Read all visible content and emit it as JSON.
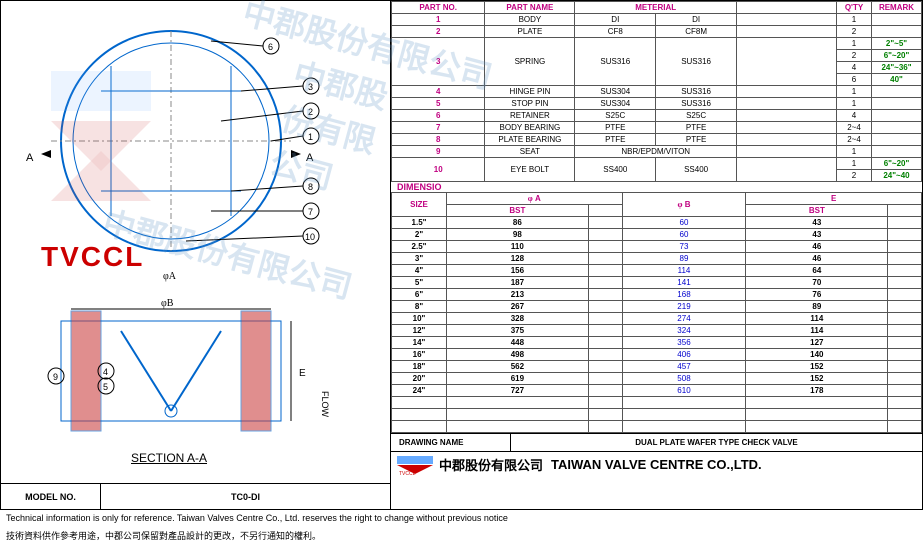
{
  "model": {
    "label": "MODEL NO.",
    "value": "TC0-DI"
  },
  "parts_header": {
    "no": "PART NO.",
    "name": "PART NAME",
    "mat": "METERIAL",
    "qty": "Q'TY",
    "remark": "REMARK"
  },
  "parts": [
    {
      "no": "1",
      "name": "BODY",
      "m1": "DI",
      "m2": "DI",
      "qtys": [
        {
          "q": "1",
          "r": ""
        }
      ]
    },
    {
      "no": "2",
      "name": "PLATE",
      "m1": "CF8",
      "m2": "CF8M",
      "qtys": [
        {
          "q": "2",
          "r": ""
        }
      ]
    },
    {
      "no": "3",
      "name": "SPRING",
      "m1": "SUS316",
      "m2": "SUS316",
      "qtys": [
        {
          "q": "1",
          "r": "2\"~5\""
        },
        {
          "q": "2",
          "r": "6\"~20\""
        },
        {
          "q": "4",
          "r": "24\"~36\""
        },
        {
          "q": "6",
          "r": "40\""
        }
      ]
    },
    {
      "no": "4",
      "name": "HINGE PIN",
      "m1": "SUS304",
      "m2": "SUS316",
      "qtys": [
        {
          "q": "1",
          "r": ""
        }
      ]
    },
    {
      "no": "5",
      "name": "STOP PIN",
      "m1": "SUS304",
      "m2": "SUS316",
      "qtys": [
        {
          "q": "1",
          "r": ""
        }
      ]
    },
    {
      "no": "6",
      "name": "RETAINER",
      "m1": "S25C",
      "m2": "S25C",
      "qtys": [
        {
          "q": "4",
          "r": ""
        }
      ]
    },
    {
      "no": "7",
      "name": "BODY BEARING",
      "m1": "PTFE",
      "m2": "PTFE",
      "qtys": [
        {
          "q": "2~4",
          "r": ""
        }
      ]
    },
    {
      "no": "8",
      "name": "PLATE BEARING",
      "m1": "PTFE",
      "m2": "PTFE",
      "qtys": [
        {
          "q": "2~4",
          "r": ""
        }
      ]
    },
    {
      "no": "9",
      "name": "SEAT",
      "m1": "NBR/EPDM/VITON",
      "m2": "",
      "span": true,
      "qtys": [
        {
          "q": "1",
          "r": ""
        }
      ]
    },
    {
      "no": "10",
      "name": "EYE BOLT",
      "m1": "SS400",
      "m2": "SS400",
      "qtys": [
        {
          "q": "1",
          "r": "6\"~20\""
        },
        {
          "q": "2",
          "r": "24\"~40"
        }
      ]
    }
  ],
  "dim_label": "DIMENSIO",
  "dim_header": {
    "size": "SIZE",
    "a": "A",
    "b": "B",
    "e": "E",
    "bst": "BST"
  },
  "dims": [
    {
      "s": "1.5\"",
      "a": "86",
      "b": "60",
      "e": "43"
    },
    {
      "s": "2\"",
      "a": "98",
      "b": "60",
      "e": "43"
    },
    {
      "s": "2.5\"",
      "a": "110",
      "b": "73",
      "e": "46"
    },
    {
      "s": "3\"",
      "a": "128",
      "b": "89",
      "e": "46"
    },
    {
      "s": "4\"",
      "a": "156",
      "b": "114",
      "e": "64"
    },
    {
      "s": "5\"",
      "a": "187",
      "b": "141",
      "e": "70"
    },
    {
      "s": "6\"",
      "a": "213",
      "b": "168",
      "e": "76"
    },
    {
      "s": "8\"",
      "a": "267",
      "b": "219",
      "e": "89"
    },
    {
      "s": "10\"",
      "a": "328",
      "b": "274",
      "e": "114"
    },
    {
      "s": "12\"",
      "a": "375",
      "b": "324",
      "e": "114"
    },
    {
      "s": "14\"",
      "a": "448",
      "b": "356",
      "e": "127"
    },
    {
      "s": "16\"",
      "a": "498",
      "b": "406",
      "e": "140"
    },
    {
      "s": "18\"",
      "a": "562",
      "b": "457",
      "e": "152"
    },
    {
      "s": "20\"",
      "a": "619",
      "b": "508",
      "e": "152"
    },
    {
      "s": "24\"",
      "a": "727",
      "b": "610",
      "e": "178"
    }
  ],
  "blank_rows": 3,
  "drawing_name": {
    "label": "DRAWING NAME",
    "value": "DUAL PLATE WAFER TYPE CHECK VALVE"
  },
  "company": {
    "cn": "中郡股份有限公司",
    "en": "TAIWAN VALVE CENTRE CO.,LTD."
  },
  "footer": {
    "en": "Technical information is only for reference. Taiwan Valves Centre Co., Ltd. reserves the right to change without previous notice",
    "cn": "技術資料供作參考用途，中郡公司保留對產品設計的更改，不另行通知的權利。"
  },
  "labels": {
    "section": "SECTION A-A",
    "flow": "FLOW",
    "tvccl": "TVCCL",
    "phiA": "φA",
    "phiB": "φB",
    "E": "E"
  },
  "watermarks": [
    "中郡股份有限公司",
    "中郡股份有限公司"
  ],
  "colors": {
    "magenta": "#c00080",
    "blue": "#0000cc",
    "green": "#008000",
    "red": "#c00"
  }
}
